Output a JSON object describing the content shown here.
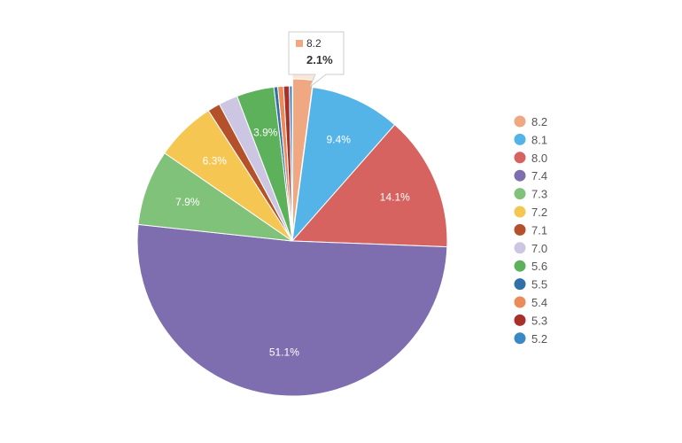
{
  "chart_data": {
    "type": "pie",
    "title": "",
    "slices": [
      {
        "label": "8.2",
        "value": 2.1,
        "color": "#f0a882",
        "show_label": false
      },
      {
        "label": "8.1",
        "value": 9.4,
        "color": "#54b4e8",
        "show_label": true
      },
      {
        "label": "8.0",
        "value": 14.1,
        "color": "#d6635f",
        "show_label": true
      },
      {
        "label": "7.4",
        "value": 51.1,
        "color": "#7e6daf",
        "show_label": true
      },
      {
        "label": "7.3",
        "value": 7.9,
        "color": "#80c27a",
        "show_label": true
      },
      {
        "label": "7.2",
        "value": 6.3,
        "color": "#f6c653",
        "show_label": true
      },
      {
        "label": "7.1",
        "value": 1.3,
        "color": "#b4502a",
        "show_label": false
      },
      {
        "label": "7.0",
        "value": 2.0,
        "color": "#cdc6e3",
        "show_label": false
      },
      {
        "label": "5.6",
        "value": 3.9,
        "color": "#5db15b",
        "show_label": true
      },
      {
        "label": "5.5",
        "value": 0.4,
        "color": "#2f70a8",
        "show_label": false
      },
      {
        "label": "5.4",
        "value": 0.6,
        "color": "#eb8b5a",
        "show_label": false
      },
      {
        "label": "5.3",
        "value": 0.6,
        "color": "#a8302b",
        "show_label": false
      },
      {
        "label": "5.2",
        "value": 0.3,
        "color": "#3b89c4",
        "show_label": false
      }
    ],
    "legend_placement": "right",
    "tooltip": {
      "label": "8.2",
      "value": "2.1%"
    }
  }
}
